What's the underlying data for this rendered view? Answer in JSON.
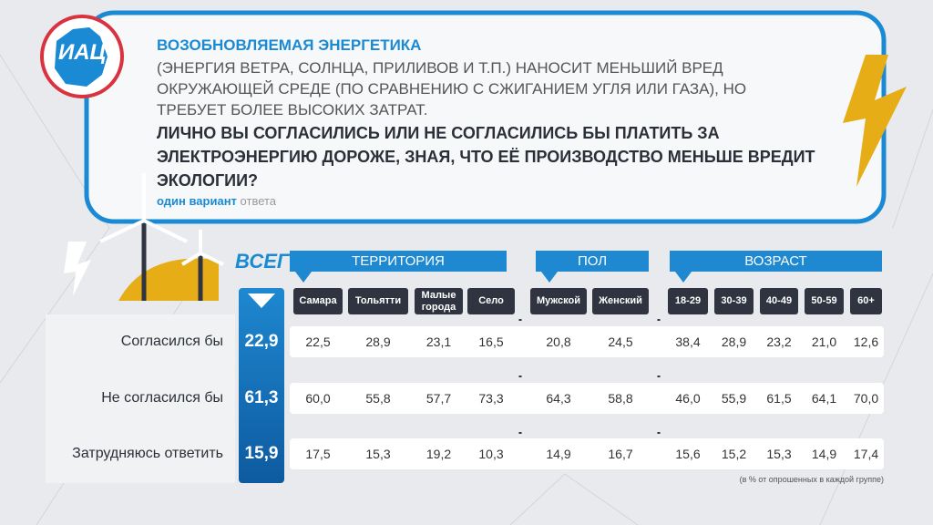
{
  "header": {
    "logo": "ИАЦ",
    "title": "ВОЗОБНОВЛЯЕМАЯ ЭНЕРГЕТИКА",
    "description": "(ЭНЕРГИЯ ВЕТРА, СОЛНЦА, ПРИЛИВОВ И Т.П.) НАНОСИТ МЕНЬШИЙ ВРЕД ОКРУЖАЮЩЕЙ СРЕДЕ (ПО СРАВНЕНИЮ С СЖИГАНИЕМ УГЛЯ ИЛИ ГАЗА), НО ТРЕБУЕТ БОЛЕЕ ВЫСОКИХ ЗАТРАТ.",
    "question": "ЛИЧНО ВЫ СОГЛАСИЛИСЬ ИЛИ НЕ СОГЛАСИЛИСЬ БЫ ПЛАТИТЬ ЗА ЭЛЕКТРОЭНЕРГИЮ ДОРОЖЕ, ЗНАЯ, ЧТО ЕЁ ПРОИЗВОДСТВО МЕНЬШЕ ВРЕДИТ ЭКОЛОГИИ?",
    "note_main": "один вариант",
    "note_rest": "ответа"
  },
  "table": {
    "total_label": "ВСЕГО",
    "groups": [
      {
        "name": "ТЕРРИТОРИЯ",
        "columns": [
          "Самара",
          "Тольятти",
          "Малые города",
          "Село"
        ]
      },
      {
        "name": "ПОЛ",
        "columns": [
          "Мужской",
          "Женский"
        ]
      },
      {
        "name": "ВОЗРАСТ",
        "columns": [
          "18-29",
          "30-39",
          "40-49",
          "50-59",
          "60+"
        ]
      }
    ],
    "rows": [
      {
        "label": "Согласился бы",
        "total": "22,9",
        "values": [
          "22,5",
          "28,9",
          "23,1",
          "16,5",
          "20,8",
          "24,5",
          "38,4",
          "28,9",
          "23,2",
          "21,0",
          "12,6"
        ]
      },
      {
        "label": "Не согласился бы",
        "total": "61,3",
        "values": [
          "60,0",
          "55,8",
          "57,7",
          "73,3",
          "64,3",
          "58,8",
          "46,0",
          "55,9",
          "61,5",
          "64,1",
          "70,0"
        ]
      },
      {
        "label": "Затрудняюсь ответить",
        "total": "15,9",
        "values": [
          "17,5",
          "15,3",
          "19,2",
          "10,3",
          "14,9",
          "16,7",
          "15,6",
          "15,2",
          "15,3",
          "14,9",
          "17,4"
        ]
      }
    ],
    "footnote": "(в % от опрошенных в каждой группе)"
  }
}
